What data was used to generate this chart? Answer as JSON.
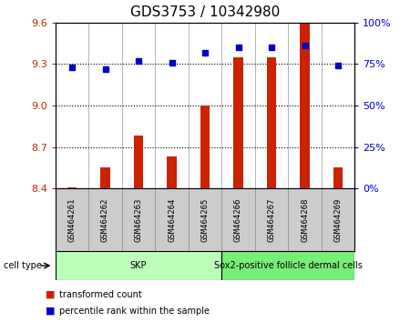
{
  "title": "GDS3753 / 10342980",
  "samples": [
    "GSM464261",
    "GSM464262",
    "GSM464263",
    "GSM464264",
    "GSM464265",
    "GSM464266",
    "GSM464267",
    "GSM464268",
    "GSM464269"
  ],
  "transformed_count": [
    8.41,
    8.55,
    8.78,
    8.63,
    9.0,
    9.35,
    9.35,
    9.6,
    8.55
  ],
  "percentile_rank": [
    73,
    72,
    77,
    76,
    82,
    85,
    85,
    86,
    74
  ],
  "ylim_left": [
    8.4,
    9.6
  ],
  "ylim_right": [
    0,
    100
  ],
  "yticks_left": [
    8.4,
    8.7,
    9.0,
    9.3,
    9.6
  ],
  "yticks_right": [
    0,
    25,
    50,
    75,
    100
  ],
  "hlines": [
    9.3,
    9.0,
    8.7
  ],
  "bar_color": "#cc2200",
  "dot_color": "#0000cc",
  "bar_bottom": 8.4,
  "cell_types": [
    {
      "label": "SKP",
      "start": 0,
      "end": 5,
      "color": "#bbffbb"
    },
    {
      "label": "Sox2-positive follicle dermal cells",
      "start": 5,
      "end": 9,
      "color": "#77ee77"
    }
  ],
  "cell_type_label": "cell type",
  "legend_items": [
    {
      "label": "transformed count",
      "color": "#cc2200"
    },
    {
      "label": "percentile rank within the sample",
      "color": "#0000cc"
    }
  ],
  "bg_color": "#ffffff",
  "title_fontsize": 11,
  "tick_fontsize": 8,
  "sample_label_fontsize": 6.5
}
